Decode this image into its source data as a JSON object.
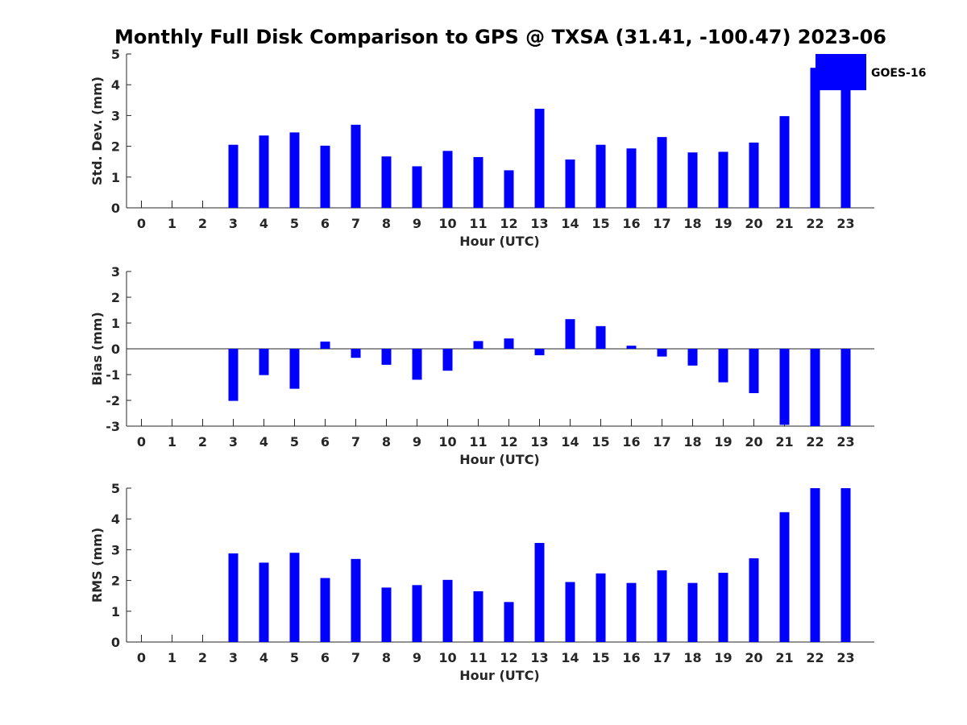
{
  "title": "Monthly Full Disk Comparison to GPS @ TXSA (31.41, -100.47) 2023-06",
  "legend": {
    "label": "GOES-16",
    "color": "#0000ff",
    "placement": "top-right"
  },
  "chart_data": [
    {
      "type": "bar",
      "ylabel": "Std. Dev. (mm)",
      "xlabel": "Hour (UTC)",
      "categories": [
        "0",
        "1",
        "2",
        "3",
        "4",
        "5",
        "6",
        "7",
        "8",
        "9",
        "10",
        "11",
        "12",
        "13",
        "14",
        "15",
        "16",
        "17",
        "18",
        "19",
        "20",
        "21",
        "22",
        "23"
      ],
      "values": [
        null,
        null,
        null,
        2.05,
        2.35,
        2.45,
        2.02,
        2.7,
        1.67,
        1.35,
        1.85,
        1.65,
        1.22,
        3.22,
        1.57,
        2.05,
        1.93,
        2.3,
        1.8,
        1.82,
        2.12,
        2.98,
        4.55,
        5.0
      ],
      "ylim": [
        0,
        5
      ],
      "yticks": [
        0,
        1,
        2,
        3,
        4,
        5
      ],
      "color": "#0000ff"
    },
    {
      "type": "bar",
      "ylabel": "Bias (mm)",
      "xlabel": "Hour (UTC)",
      "categories": [
        "0",
        "1",
        "2",
        "3",
        "4",
        "5",
        "6",
        "7",
        "8",
        "9",
        "10",
        "11",
        "12",
        "13",
        "14",
        "15",
        "16",
        "17",
        "18",
        "19",
        "20",
        "21",
        "22",
        "23"
      ],
      "values": [
        null,
        null,
        null,
        -2.02,
        -1.02,
        -1.55,
        0.28,
        -0.35,
        -0.62,
        -1.2,
        -0.85,
        0.3,
        0.4,
        -0.25,
        1.15,
        0.88,
        0.12,
        -0.3,
        -0.65,
        -1.3,
        -1.72,
        -2.95,
        -3.0,
        -3.0
      ],
      "ylim": [
        -3,
        3
      ],
      "yticks": [
        -3,
        -2,
        -1,
        0,
        1,
        2,
        3
      ],
      "color": "#0000ff"
    },
    {
      "type": "bar",
      "ylabel": "RMS (mm)",
      "xlabel": "Hour (UTC)",
      "categories": [
        "0",
        "1",
        "2",
        "3",
        "4",
        "5",
        "6",
        "7",
        "8",
        "9",
        "10",
        "11",
        "12",
        "13",
        "14",
        "15",
        "16",
        "17",
        "18",
        "19",
        "20",
        "21",
        "22",
        "23"
      ],
      "values": [
        null,
        null,
        null,
        2.88,
        2.58,
        2.9,
        2.08,
        2.7,
        1.77,
        1.85,
        2.02,
        1.65,
        1.3,
        3.22,
        1.95,
        2.23,
        1.92,
        2.33,
        1.92,
        2.25,
        2.72,
        4.22,
        5.0,
        5.0
      ],
      "ylim": [
        0,
        5
      ],
      "yticks": [
        0,
        1,
        2,
        3,
        4,
        5
      ],
      "color": "#0000ff"
    }
  ]
}
